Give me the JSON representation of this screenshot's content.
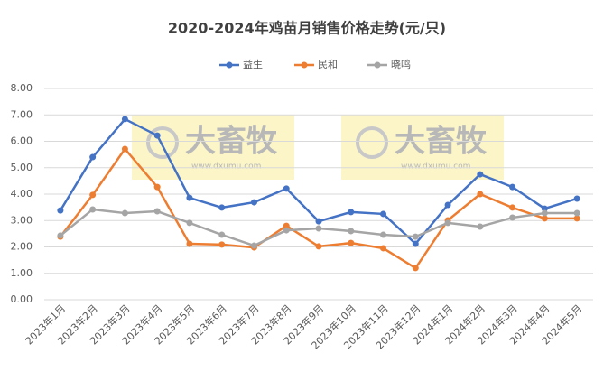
{
  "chart_data": {
    "type": "line",
    "title": "2020-2024年鸡苗月销售价格走势(元/只)",
    "categories": [
      "2023年1月",
      "2023年2月",
      "2023年3月",
      "2023年4月",
      "2023年5月",
      "2023年6月",
      "2023年7月",
      "2023年8月",
      "2023年9月",
      "2023年10月",
      "2023年11月",
      "2023年12月",
      "2024年1月",
      "2024年2月",
      "2024年3月",
      "2024年4月",
      "2024年5月"
    ],
    "series": [
      {
        "name": "益生",
        "color": "#4472c4",
        "values": [
          3.38,
          5.4,
          6.84,
          6.22,
          3.86,
          3.49,
          3.69,
          4.21,
          2.97,
          3.32,
          3.25,
          2.12,
          3.59,
          4.75,
          4.27,
          3.45,
          3.83
        ]
      },
      {
        "name": "民和",
        "color": "#ed7d31",
        "values": [
          2.39,
          3.97,
          5.71,
          4.27,
          2.12,
          2.09,
          1.98,
          2.8,
          2.02,
          2.15,
          1.95,
          1.2,
          3.01,
          4.0,
          3.49,
          3.08,
          3.08
        ]
      },
      {
        "name": "晓鸣",
        "color": "#a5a5a5",
        "values": [
          2.43,
          3.42,
          3.28,
          3.35,
          2.91,
          2.46,
          2.05,
          2.63,
          2.7,
          2.6,
          2.46,
          2.39,
          2.91,
          2.77,
          3.11,
          3.28,
          3.28
        ]
      }
    ],
    "ylim": [
      0,
      8
    ],
    "yticks": [
      {
        "value": 0,
        "label": "0.00"
      },
      {
        "value": 1,
        "label": "1.00"
      },
      {
        "value": 2,
        "label": "2.00"
      },
      {
        "value": 3,
        "label": "3.00"
      },
      {
        "value": 4,
        "label": "4.00"
      },
      {
        "value": 5,
        "label": "5.00"
      },
      {
        "value": 6,
        "label": "6.00"
      },
      {
        "value": 7,
        "label": "7.00"
      },
      {
        "value": 8,
        "label": "8.00"
      }
    ],
    "grid": true,
    "legend": "top"
  },
  "watermark": {
    "name": "大畜牧",
    "url": "www.dxumu.com"
  }
}
